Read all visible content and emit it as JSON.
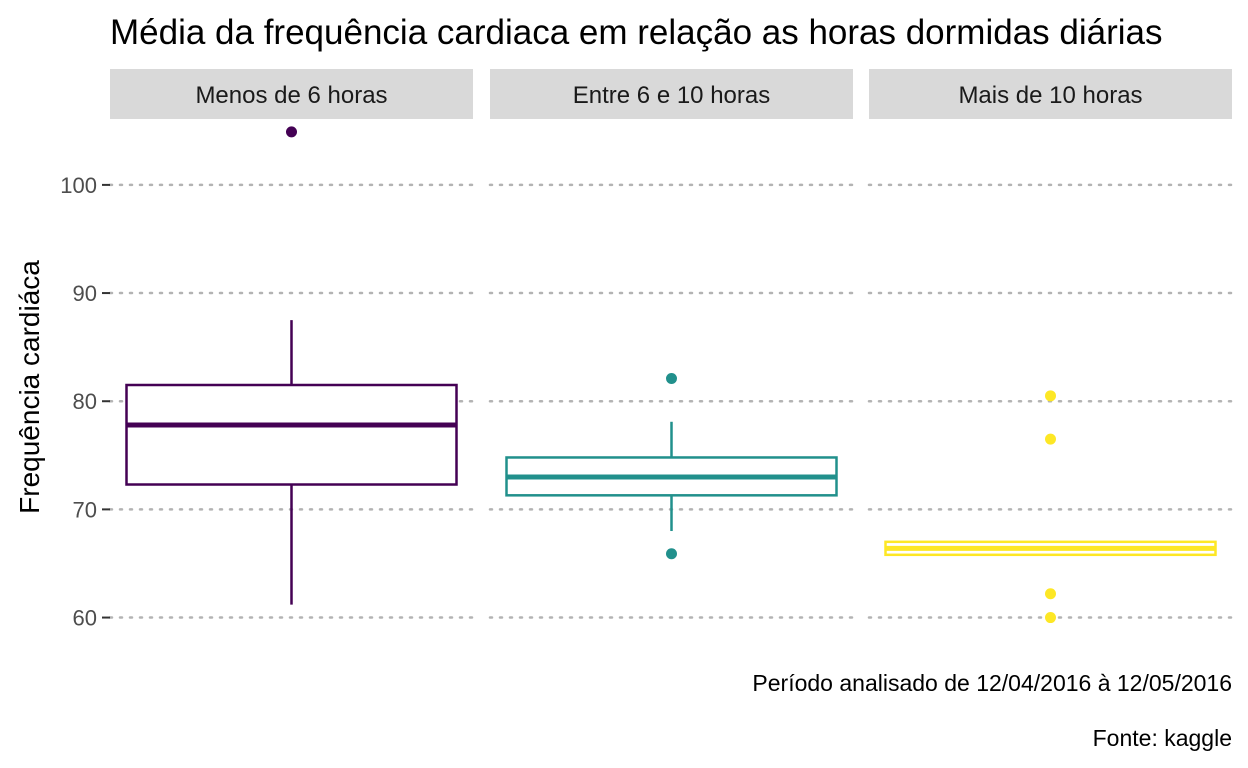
{
  "chart_data": {
    "type": "boxplot",
    "title": "Média da frequência cardiaca em relação as horas dormidas diárias",
    "ylabel": "Frequência cardiáca",
    "xlabel": "",
    "ylim": [
      57,
      106
    ],
    "yticks": [
      60,
      70,
      80,
      90,
      100
    ],
    "grid": "horizontal dotted",
    "legend": "none",
    "caption_lines": [
      "Período analisado de 12/04/2016 à 12/05/2016",
      "Fonte: kaggle"
    ],
    "panels": [
      {
        "label": "Menos de 6 horas",
        "color": "#440154",
        "q1": 72.3,
        "median": 77.8,
        "q3": 81.5,
        "whisker_low": 61.2,
        "whisker_high": 87.5,
        "outliers": [
          104.9
        ]
      },
      {
        "label": "Entre 6 e 10 horas",
        "color": "#21908C",
        "q1": 71.3,
        "median": 73.0,
        "q3": 74.8,
        "whisker_low": 68.0,
        "whisker_high": 78.1,
        "outliers": [
          82.1,
          65.9
        ]
      },
      {
        "label": "Mais de 10 horas",
        "color": "#FDE725",
        "q1": 65.8,
        "median": 66.4,
        "q3": 67.0,
        "whisker_low": 65.8,
        "whisker_high": 67.0,
        "outliers": [
          80.5,
          76.5,
          62.2,
          60.0
        ]
      }
    ]
  }
}
